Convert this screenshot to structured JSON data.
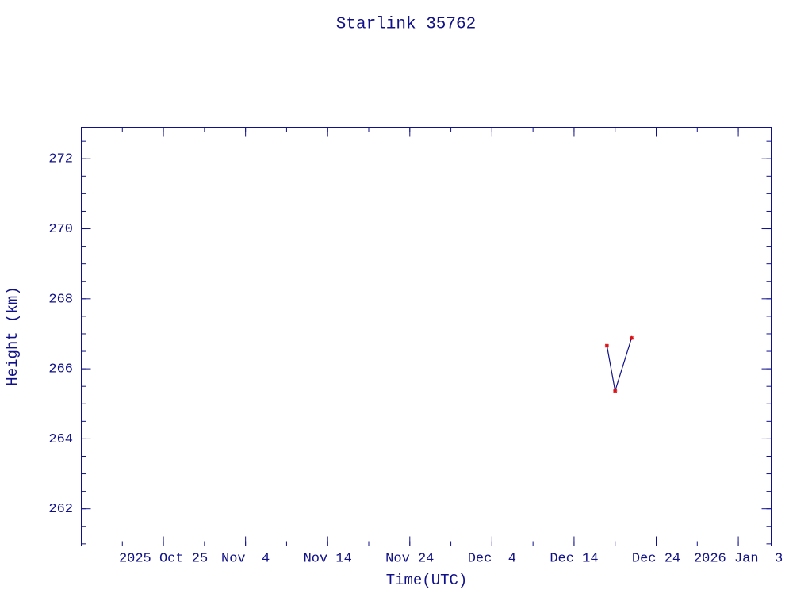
{
  "chart_data": {
    "type": "line",
    "title": "Starlink 35762",
    "xlabel": "Time(UTC)",
    "ylabel": "Height (km)",
    "x": [
      "2025-12-18",
      "2025-12-19",
      "2025-12-21"
    ],
    "series": [
      {
        "name": "Height",
        "color": "#10108a",
        "marker_color": "#e01010",
        "values": [
          266.66,
          265.37,
          266.88
        ]
      }
    ],
    "xlim": [
      "2025-10-15",
      "2026-01-07"
    ],
    "xticks": [
      {
        "value": "2025-10-25",
        "label": "2025 Oct 25"
      },
      {
        "value": "2025-11-04",
        "label": "Nov  4"
      },
      {
        "value": "2025-11-14",
        "label": "Nov 14"
      },
      {
        "value": "2025-11-24",
        "label": "Nov 24"
      },
      {
        "value": "2025-12-04",
        "label": "Dec  4"
      },
      {
        "value": "2025-12-14",
        "label": "Dec 14"
      },
      {
        "value": "2025-12-24",
        "label": "Dec 24"
      },
      {
        "value": "2026-01-03",
        "label": "2026 Jan  3"
      }
    ],
    "ylim": [
      260.94,
      272.9
    ],
    "yticks": [
      262,
      264,
      266,
      268,
      270,
      272
    ],
    "grid": false
  }
}
